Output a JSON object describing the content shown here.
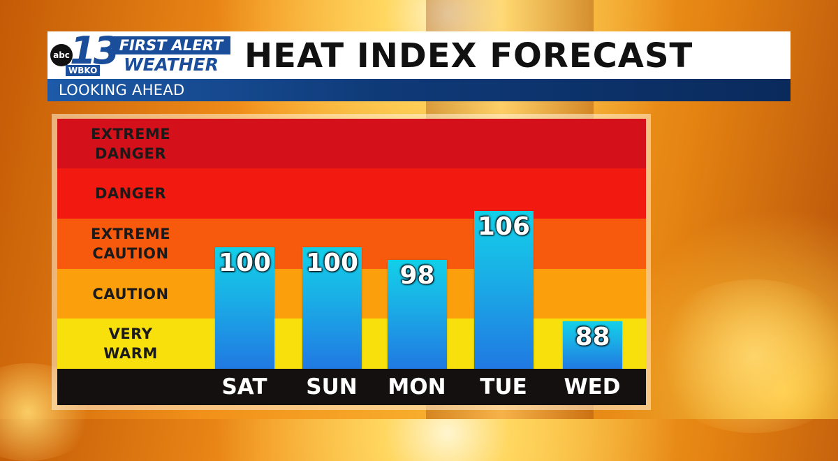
{
  "header": {
    "logo": {
      "network": "abc",
      "channel": "13",
      "station": "WBKO",
      "line1": "FIRST ALERT",
      "line2": "WEATHER"
    },
    "title": "HEAT INDEX FORECAST",
    "subtitle": "LOOKING AHEAD"
  },
  "colors": {
    "header_blue": "#1b4e9a",
    "subbar_blue": "#0f3a78",
    "bar_top": "#12d0e8",
    "bar_bottom": "#2079e2",
    "day_strip": "#141010"
  },
  "chart_data": {
    "type": "bar",
    "title": "HEAT INDEX FORECAST",
    "xlabel": "",
    "ylabel": "",
    "categories": [
      "SAT",
      "SUN",
      "MON",
      "TUE",
      "WED"
    ],
    "values": [
      100,
      100,
      98,
      106,
      88
    ],
    "value_labels": [
      "100",
      "100",
      "98",
      "106",
      "88"
    ],
    "bands": [
      {
        "label": "EXTREME DANGER",
        "color": "#d4101a"
      },
      {
        "label": "DANGER",
        "color": "#f21a10"
      },
      {
        "label": "EXTREME CAUTION",
        "color": "#f75a0c"
      },
      {
        "label": "CAUTION",
        "color": "#fb9f0c"
      },
      {
        "label": "VERY WARM",
        "color": "#f7e00c"
      }
    ],
    "grid": false,
    "legend": "none"
  }
}
